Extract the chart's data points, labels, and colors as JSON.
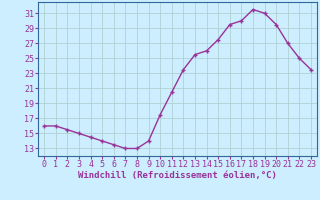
{
  "x": [
    0,
    1,
    2,
    3,
    4,
    5,
    6,
    7,
    8,
    9,
    10,
    11,
    12,
    13,
    14,
    15,
    16,
    17,
    18,
    19,
    20,
    21,
    22,
    23
  ],
  "y": [
    16,
    16,
    15.5,
    15,
    14.5,
    14,
    13.5,
    13,
    13,
    14,
    17.5,
    20.5,
    23.5,
    25.5,
    26,
    27.5,
    29.5,
    30,
    31.5,
    31,
    29.5,
    27,
    25,
    23.5
  ],
  "line_color": "#993399",
  "marker": "+",
  "bg_color": "#cceeff",
  "grid_color": "#aacccc",
  "xlabel": "Windchill (Refroidissement éolien,°C)",
  "ylabel_ticks": [
    13,
    15,
    17,
    19,
    21,
    23,
    25,
    27,
    29,
    31
  ],
  "xlim": [
    -0.5,
    23.5
  ],
  "ylim": [
    12.0,
    32.5
  ],
  "xtick_labels": [
    "0",
    "1",
    "2",
    "3",
    "4",
    "5",
    "6",
    "7",
    "8",
    "9",
    "10",
    "11",
    "12",
    "13",
    "14",
    "15",
    "16",
    "17",
    "18",
    "19",
    "20",
    "21",
    "22",
    "23"
  ],
  "xlabel_fontsize": 6.5,
  "tick_fontsize": 6,
  "line_width": 1.0,
  "marker_size": 3.5
}
